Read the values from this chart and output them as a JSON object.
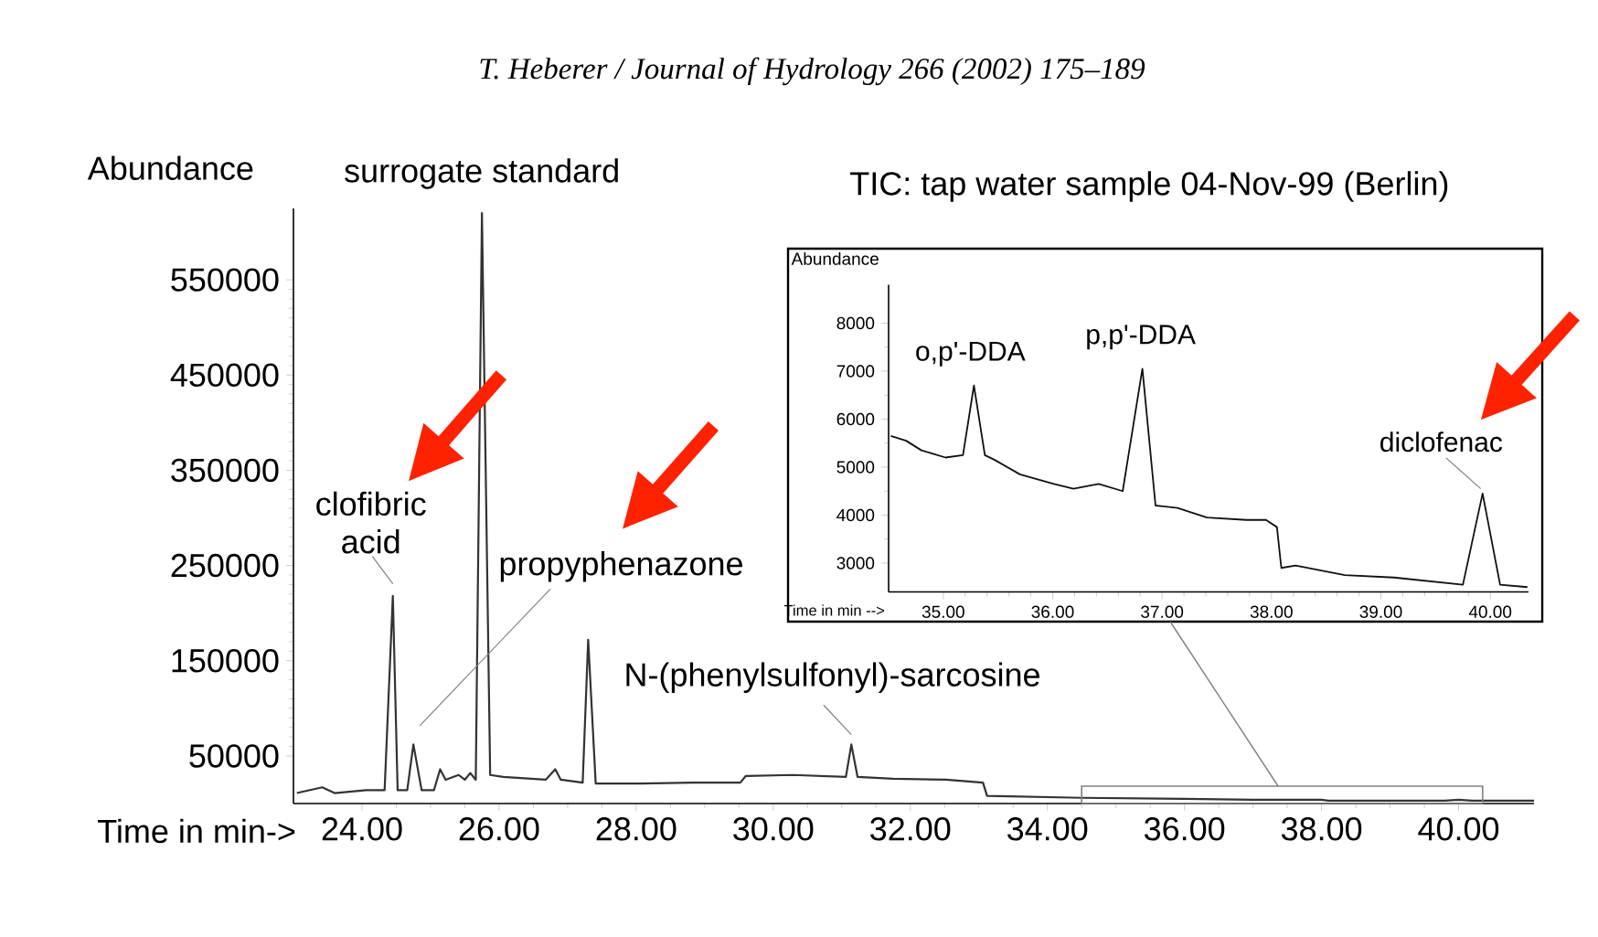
{
  "chart_data": [
    {
      "type": "line",
      "title": "T. Heberer / Journal of Hydrology 266 (2002) 175–189",
      "subtitle": "TIC: tap water sample 04-Nov-99 (Berlin)",
      "xlabel": "Time in min->",
      "ylabel": "Abundance",
      "color": "#333333",
      "marker": "none",
      "x": [
        23.05,
        23.42,
        23.6,
        24.06,
        24.33,
        24.45,
        24.52,
        24.66,
        24.75,
        24.87,
        25.05,
        25.14,
        25.22,
        25.41,
        25.5,
        25.58,
        25.66,
        25.75,
        25.87,
        26.06,
        26.68,
        26.82,
        26.9,
        27.22,
        27.3,
        27.41,
        28.06,
        28.83,
        29.52,
        29.6,
        30.29,
        31.06,
        31.14,
        31.23,
        31.75,
        32.52,
        33.06,
        33.12,
        34.5,
        36,
        37,
        38,
        38.1,
        39.8,
        40,
        40.2,
        41.1
      ],
      "values": [
        11000,
        17000,
        11000,
        14000,
        14000,
        218000,
        14000,
        14000,
        62000,
        14000,
        14000,
        36000,
        25000,
        30000,
        25000,
        32000,
        25000,
        620000,
        30000,
        28000,
        25000,
        36000,
        25000,
        22000,
        172000,
        21000,
        21000,
        22000,
        22000,
        29000,
        30000,
        28000,
        62000,
        28000,
        26000,
        25000,
        22000,
        8000,
        6000,
        5000,
        4000,
        4000,
        3000,
        3000,
        4000,
        3000,
        3000
      ],
      "xlim": [
        23,
        41.1
      ],
      "ylim": [
        0,
        625000
      ],
      "xticks": [
        {
          "value": 24,
          "label": "24.00"
        },
        {
          "value": 26,
          "label": "26.00"
        },
        {
          "value": 28,
          "label": "28.00"
        },
        {
          "value": 30,
          "label": "30.00"
        },
        {
          "value": 32,
          "label": "32.00"
        },
        {
          "value": 34,
          "label": "34.00"
        },
        {
          "value": 36,
          "label": "36.00"
        },
        {
          "value": 38,
          "label": "38.00"
        },
        {
          "value": 40,
          "label": "40.00"
        }
      ],
      "yticks": [
        50000,
        150000,
        250000,
        350000,
        450000,
        550000
      ],
      "annotations": [
        {
          "text": "surrogate standard",
          "x": 25.75,
          "y": 620000
        },
        {
          "text": "clofibric acid",
          "x": 24.45,
          "y": 218000
        },
        "propyphenazone",
        {
          "text": "N-(phenylsulfonyl)-sarcosine",
          "x": 31.14,
          "y": 62000
        }
      ]
    },
    {
      "type": "line",
      "xlabel": "Time in min -->",
      "ylabel": "Abundance",
      "color": "#111111",
      "marker": "none",
      "x": [
        34.52,
        34.66,
        34.8,
        35.02,
        35.18,
        35.28,
        35.38,
        35.47,
        35.7,
        36.01,
        36.19,
        36.42,
        36.64,
        36.82,
        36.94,
        37.14,
        37.41,
        37.77,
        37.95,
        38.05,
        38.09,
        38.22,
        38.67,
        39.12,
        39.75,
        39.93,
        40.09,
        40.34
      ],
      "values": [
        5650,
        5550,
        5350,
        5200,
        5250,
        6700,
        5250,
        5150,
        4850,
        4650,
        4550,
        4650,
        4500,
        7050,
        4200,
        4150,
        3950,
        3900,
        3900,
        3750,
        2900,
        2950,
        2750,
        2700,
        2550,
        4450,
        2550,
        2500
      ],
      "xlim": [
        34.5,
        40.35
      ],
      "ylim": [
        2400,
        8800
      ],
      "xticks": [
        {
          "value": 35,
          "label": "35.00"
        },
        {
          "value": 36,
          "label": "36.00"
        },
        {
          "value": 37,
          "label": "37.00"
        },
        {
          "value": 38,
          "label": "38.00"
        },
        {
          "value": 39,
          "label": "39.00"
        },
        {
          "value": 40,
          "label": "40.00"
        }
      ],
      "yticks": [
        3000,
        4000,
        5000,
        6000,
        7000,
        8000
      ],
      "annotations": [
        {
          "text": "o,p'-DDA",
          "x": 35.28,
          "y": 6700
        },
        {
          "text": "p,p'-DDA",
          "x": 36.82,
          "y": 7050
        },
        {
          "text": "diclofenac",
          "x": 39.93,
          "y": 4450
        }
      ]
    }
  ]
}
